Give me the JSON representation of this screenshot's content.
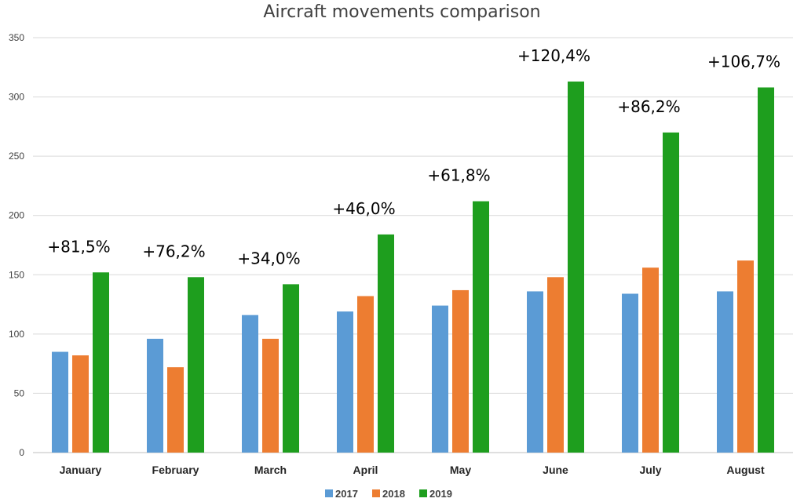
{
  "chart_data": {
    "type": "bar",
    "title": "Aircraft movements comparison",
    "xlabel": "",
    "ylabel": "",
    "ylim": [
      0,
      350
    ],
    "yticks": [
      0,
      50,
      100,
      150,
      200,
      250,
      300,
      350
    ],
    "grid": true,
    "legend_position": "bottom",
    "categories": [
      "January",
      "February",
      "March",
      "April",
      "May",
      "June",
      "July",
      "August"
    ],
    "series": [
      {
        "name": "2017",
        "color": "#5b9bd5",
        "values": [
          85,
          96,
          116,
          119,
          124,
          136,
          134,
          136
        ]
      },
      {
        "name": "2018",
        "color": "#ed7d31",
        "values": [
          82,
          72,
          96,
          132,
          137,
          148,
          156,
          162
        ]
      },
      {
        "name": "2019",
        "color": "#1e9e1e",
        "values": [
          152,
          148,
          142,
          184,
          212,
          313,
          270,
          308
        ]
      }
    ],
    "annotations": [
      "+81,5%",
      "+76,2%",
      "+34,0%",
      "+46,0%",
      "+61,8%",
      "+120,4%",
      "+86,2%",
      "+106,7%"
    ]
  }
}
